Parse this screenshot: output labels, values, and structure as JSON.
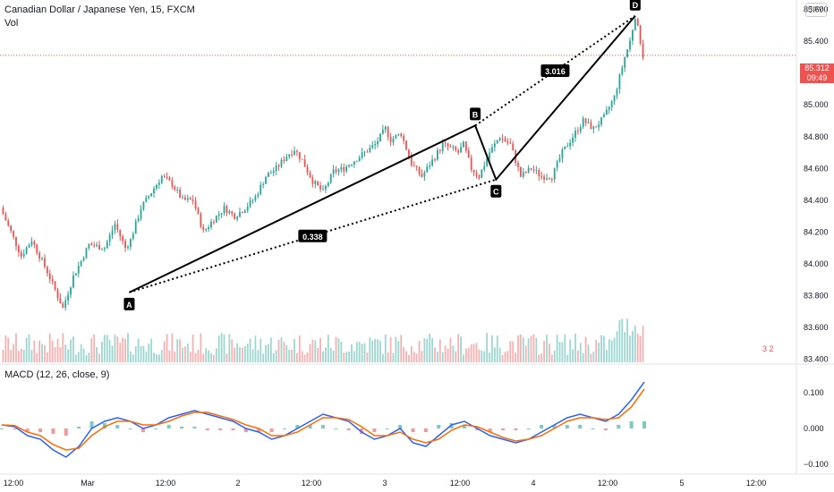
{
  "header": {
    "title": "Canadian Dollar / Japanese Yen, 15, FXCM",
    "vol_label": "Vol",
    "currency_button": "JPY"
  },
  "macd": {
    "title": "MACD (12, 26, close, 9)"
  },
  "price_badge": {
    "price": "85.312",
    "countdown": "09:49"
  },
  "logo": {
    "text": "3 2"
  },
  "colors": {
    "up": "#26a69a",
    "down": "#ef5350",
    "macd_line": "#2962ff",
    "signal_line": "#ff6d00",
    "pattern": "#000000"
  },
  "chart_data": [
    {
      "type": "candlestick",
      "title": "Canadian Dollar / Japanese Yen, 15, FXCM",
      "y_ticks": [
        "83.400",
        "83.600",
        "83.800",
        "84.000",
        "84.200",
        "84.400",
        "84.600",
        "84.800",
        "85.000",
        "85.200",
        "85.400",
        "85.600"
      ],
      "x_ticks": [
        "12:00",
        "Mar",
        "12:00",
        "2",
        "12:00",
        "3",
        "12:00",
        "4",
        "12:00",
        "5",
        "12:00"
      ],
      "ylim": [
        83.38,
        85.66
      ],
      "last_price": 85.312,
      "pattern": {
        "points": [
          {
            "label": "A",
            "price": 83.82
          },
          {
            "label": "B",
            "price": 84.87
          },
          {
            "label": "C",
            "price": 84.53
          },
          {
            "label": "D",
            "price": 85.56
          }
        ],
        "ratios": [
          {
            "label": "0.338",
            "from": "A",
            "to": "C"
          },
          {
            "label": "3.016",
            "from": "B",
            "to": "D"
          }
        ]
      },
      "path": [
        [
          0,
          84.35
        ],
        [
          8,
          84.05
        ],
        [
          12,
          84.15
        ],
        [
          18,
          83.95
        ],
        [
          24,
          83.72
        ],
        [
          28,
          83.92
        ],
        [
          34,
          84.12
        ],
        [
          40,
          84.1
        ],
        [
          44,
          84.25
        ],
        [
          48,
          84.1
        ],
        [
          50,
          84.15
        ],
        [
          54,
          84.35
        ],
        [
          58,
          84.45
        ],
        [
          62,
          84.55
        ],
        [
          66,
          84.5
        ],
        [
          70,
          84.4
        ],
        [
          74,
          84.4
        ],
        [
          78,
          84.2
        ],
        [
          82,
          84.28
        ],
        [
          86,
          84.35
        ],
        [
          90,
          84.3
        ],
        [
          94,
          84.35
        ],
        [
          98,
          84.42
        ],
        [
          102,
          84.55
        ],
        [
          106,
          84.6
        ],
        [
          110,
          84.68
        ],
        [
          113,
          84.72
        ],
        [
          116,
          84.65
        ],
        [
          120,
          84.52
        ],
        [
          124,
          84.45
        ],
        [
          128,
          84.58
        ],
        [
          132,
          84.6
        ],
        [
          136,
          84.65
        ],
        [
          140,
          84.7
        ],
        [
          144,
          84.75
        ],
        [
          148,
          84.85
        ],
        [
          150,
          84.78
        ],
        [
          154,
          84.82
        ],
        [
          158,
          84.63
        ],
        [
          162,
          84.55
        ],
        [
          166,
          84.65
        ],
        [
          170,
          84.75
        ],
        [
          174,
          84.72
        ],
        [
          176,
          84.7
        ],
        [
          178,
          84.75
        ],
        [
          181,
          84.6
        ],
        [
          184,
          84.55
        ],
        [
          188,
          84.7
        ],
        [
          192,
          84.8
        ],
        [
          196,
          84.75
        ],
        [
          200,
          84.55
        ],
        [
          204,
          84.6
        ],
        [
          208,
          84.55
        ],
        [
          212,
          84.55
        ],
        [
          216,
          84.7
        ],
        [
          220,
          84.8
        ],
        [
          224,
          84.9
        ],
        [
          228,
          84.85
        ],
        [
          232,
          84.92
        ],
        [
          236,
          85.05
        ],
        [
          240,
          85.3
        ],
        [
          242,
          85.4
        ],
        [
          244,
          85.56
        ],
        [
          246,
          85.4
        ],
        [
          247,
          85.31
        ]
      ],
      "x_domain": [
        0,
        247
      ]
    },
    {
      "type": "line",
      "title": "MACD (12, 26, close, 9)",
      "y_ticks": [
        "0.100",
        "0.000",
        "−0.100"
      ],
      "ylim": [
        -0.115,
        0.16
      ],
      "series": [
        {
          "name": "MACD",
          "values": [
            0.01,
            0.005,
            -0.02,
            -0.03,
            -0.06,
            -0.08,
            -0.05,
            0.0,
            0.02,
            0.03,
            0.02,
            0.0,
            0.01,
            0.03,
            0.04,
            0.05,
            0.04,
            0.03,
            0.02,
            0.0,
            -0.01,
            -0.03,
            -0.02,
            0.0,
            0.02,
            0.04,
            0.03,
            0.02,
            -0.01,
            -0.03,
            -0.02,
            0.0,
            -0.04,
            -0.05,
            -0.02,
            0.01,
            0.02,
            0.0,
            -0.02,
            -0.03,
            -0.04,
            -0.03,
            -0.01,
            0.01,
            0.03,
            0.04,
            0.03,
            0.02,
            0.04,
            0.08,
            0.13
          ]
        },
        {
          "name": "Signal",
          "values": [
            0.01,
            0.008,
            -0.01,
            -0.02,
            -0.045,
            -0.06,
            -0.055,
            -0.02,
            0.005,
            0.02,
            0.02,
            0.01,
            0.01,
            0.02,
            0.035,
            0.045,
            0.045,
            0.035,
            0.025,
            0.01,
            0.0,
            -0.02,
            -0.02,
            -0.01,
            0.01,
            0.03,
            0.03,
            0.025,
            0.005,
            -0.02,
            -0.02,
            -0.01,
            -0.03,
            -0.04,
            -0.03,
            -0.005,
            0.01,
            0.005,
            -0.01,
            -0.025,
            -0.035,
            -0.03,
            -0.02,
            0.0,
            0.02,
            0.03,
            0.03,
            0.025,
            0.03,
            0.06,
            0.11
          ]
        }
      ]
    }
  ]
}
